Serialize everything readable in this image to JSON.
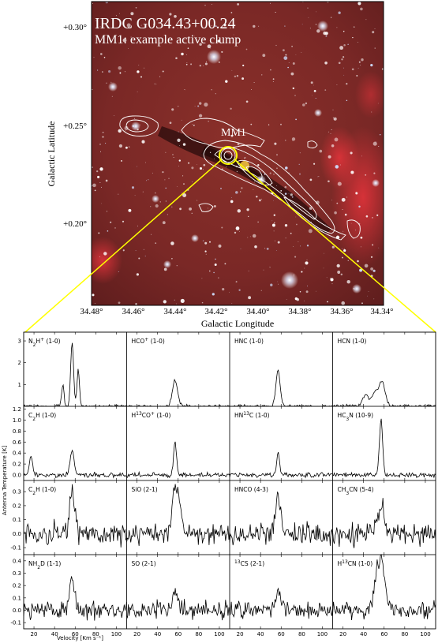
{
  "image_panel": {
    "title_line1": "IRDC G034.43+00.24",
    "title_line2": "MM1: example active clump",
    "clump_label": "MM1",
    "x_label": "Galactic Longitude",
    "y_label": "Galactic Latitude",
    "x_ticks": [
      "34.48°",
      "34.46°",
      "34.44°",
      "34.42°",
      "34.40°",
      "34.38°",
      "34.36°",
      "34.34°"
    ],
    "y_ticks": [
      "+0.30°",
      "+0.25°",
      "+0.20°"
    ],
    "colors": {
      "background": "#7a2a26",
      "contour": "#ffffff",
      "zoom_lines": "#ffff00"
    }
  },
  "spectra": {
    "x_label": "Velocity [Km s⁻¹]",
    "y_label": "Antenna Temperature [K]",
    "x_ticks": [
      "20",
      "40",
      "60",
      "80",
      "100"
    ],
    "rows": [
      {
        "y_ticks": [
          "3",
          "2",
          "1"
        ],
        "ylim": [
          0,
          3.4
        ]
      },
      {
        "y_ticks": [
          "1.2",
          "1.0",
          "0.8",
          "0.6",
          "0.4",
          "0.2",
          "0.0"
        ],
        "ylim": [
          -0.1,
          1.25
        ]
      },
      {
        "y_ticks": [
          "0.3",
          "0.2",
          "0.1",
          "0.0",
          "-0.1"
        ],
        "ylim": [
          -0.15,
          0.38
        ]
      },
      {
        "y_ticks": [
          "0.4",
          "0.3",
          "0.2",
          "0.1",
          "0.0",
          "-0.1"
        ],
        "ylim": [
          -0.15,
          0.45
        ]
      }
    ],
    "panels": [
      {
        "label": "N2H+ (1-0)",
        "label_html": "N<tspan baseline-shift='sub' font-size='6'>2</tspan>H<tspan baseline-shift='super' font-size='6'>+</tspan> (1-0)",
        "row": 0,
        "col": 0,
        "noise": 0.05,
        "peaks": [
          [
            48,
            1.0,
            1.2
          ],
          [
            57,
            3.0,
            1.4
          ],
          [
            63,
            1.7,
            1.2
          ]
        ]
      },
      {
        "label": "HCO+ (1-0)",
        "label_html": "HCO<tspan baseline-shift='super' font-size='6'>+</tspan> (1-0)",
        "row": 0,
        "col": 1,
        "noise": 0.05,
        "peaks": [
          [
            57,
            1.2,
            2.5
          ]
        ]
      },
      {
        "label": "HNC (1-0)",
        "label_html": "HNC (1-0)",
        "row": 0,
        "col": 2,
        "noise": 0.05,
        "peaks": [
          [
            57,
            1.7,
            2.0
          ]
        ]
      },
      {
        "label": "HCN (1-0)",
        "label_html": "HCN (1-0)",
        "row": 0,
        "col": 3,
        "noise": 0.06,
        "peaks": [
          [
            42,
            0.5,
            3.0
          ],
          [
            51,
            0.6,
            3.0
          ],
          [
            58,
            1.1,
            3.0
          ]
        ]
      },
      {
        "label": "C2H (1-0)",
        "label_html": "C<tspan baseline-shift='sub' font-size='6'>2</tspan>H (1-0)",
        "row": 1,
        "col": 0,
        "noise": 0.03,
        "peaks": [
          [
            17,
            0.35,
            1.5
          ],
          [
            57,
            0.45,
            2.0
          ]
        ]
      },
      {
        "label": "H13CO+ (1-0)",
        "label_html": "H<tspan baseline-shift='super' font-size='6'>13</tspan>CO<tspan baseline-shift='super' font-size='6'>+</tspan> (1-0)",
        "row": 1,
        "col": 1,
        "noise": 0.03,
        "peaks": [
          [
            57,
            0.6,
            1.4
          ]
        ]
      },
      {
        "label": "HN13C (1-0)",
        "label_html": "HN<tspan baseline-shift='super' font-size='6'>13</tspan>C (1-0)",
        "row": 1,
        "col": 2,
        "noise": 0.03,
        "peaks": [
          [
            57,
            0.4,
            1.3
          ]
        ]
      },
      {
        "label": "HC3N (10-9)",
        "label_html": "HC<tspan baseline-shift='sub' font-size='6'>3</tspan>N (10-9)",
        "row": 1,
        "col": 3,
        "noise": 0.03,
        "peaks": [
          [
            57,
            1.0,
            1.6
          ]
        ]
      },
      {
        "label": "C2H (1-0)",
        "label_html": "C<tspan baseline-shift='sub' font-size='6'>2</tspan>H (1-0)",
        "row": 2,
        "col": 0,
        "noise": 0.055,
        "peaks": [
          [
            57,
            0.28,
            2.5
          ]
        ]
      },
      {
        "label": "SiO (2-1)",
        "label_html": "SiO (2-1)",
        "row": 2,
        "col": 1,
        "noise": 0.05,
        "peaks": [
          [
            58,
            0.35,
            3.5
          ]
        ]
      },
      {
        "label": "HNCO (4-3)",
        "label_html": "HNCO (4-3)",
        "row": 2,
        "col": 2,
        "noise": 0.055,
        "peaks": [
          [
            57,
            0.25,
            2.5
          ]
        ]
      },
      {
        "label": "CH3CN (5-4)",
        "label_html": "CH<tspan baseline-shift='sub' font-size='6'>3</tspan>CN (5-4)",
        "row": 2,
        "col": 3,
        "noise": 0.055,
        "peaks": [
          [
            57,
            0.2,
            3.0
          ]
        ]
      },
      {
        "label": "NH2D (1-1)",
        "label_html": "NH<tspan baseline-shift='sub' font-size='6'>2</tspan>D (1-1)",
        "row": 3,
        "col": 0,
        "noise": 0.05,
        "peaks": [
          [
            57,
            0.25,
            2.2
          ]
        ]
      },
      {
        "label": "SO (2-1)",
        "label_html": "SO (2-1)",
        "row": 3,
        "col": 1,
        "noise": 0.05,
        "peaks": [
          [
            57,
            0.17,
            2.5
          ]
        ]
      },
      {
        "label": "13CS (2-1)",
        "label_html": "<tspan baseline-shift='super' font-size='6'>13</tspan>CS (2-1)",
        "row": 3,
        "col": 2,
        "noise": 0.05,
        "peaks": [
          [
            57,
            0.15,
            2.5
          ]
        ]
      },
      {
        "label": "H13CN (1-0)",
        "label_html": "H<tspan baseline-shift='super' font-size='6'>13</tspan>CN (1-0)",
        "row": 3,
        "col": 3,
        "noise": 0.05,
        "peaks": [
          [
            53,
            0.25,
            3.0
          ],
          [
            58,
            0.35,
            3.0
          ]
        ]
      }
    ],
    "xlim": [
      10,
      110
    ]
  }
}
